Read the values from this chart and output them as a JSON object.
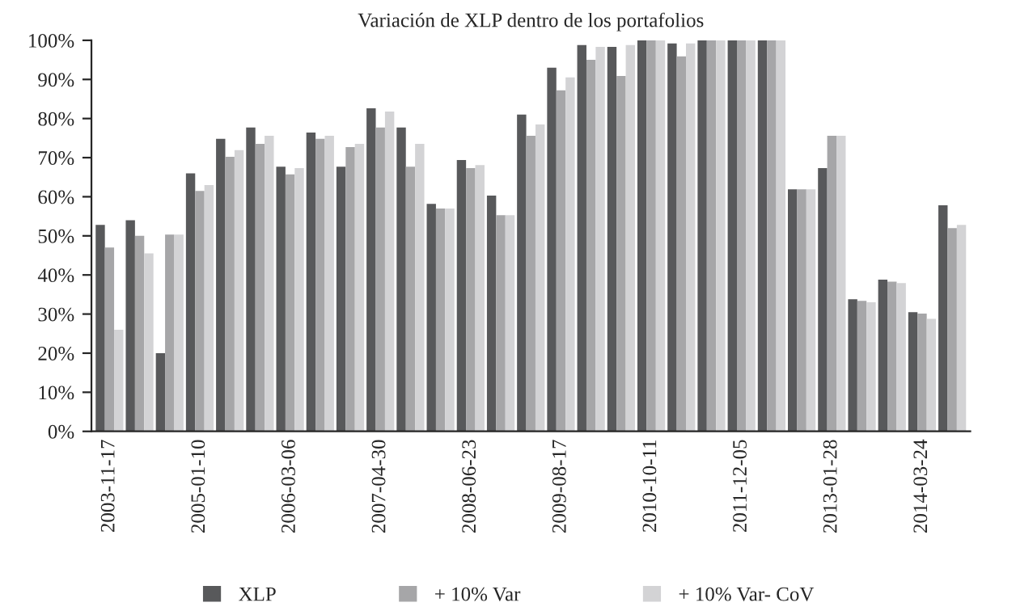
{
  "chart_data": {
    "type": "bar",
    "title": "Variación de XLP dentro de los portafolios",
    "categories": [
      "2003-11-17",
      null,
      null,
      "2005-01-10",
      null,
      null,
      "2006-03-06",
      null,
      null,
      "2007-04-30",
      null,
      null,
      "2008-06-23",
      null,
      null,
      "2009-08-17",
      null,
      null,
      "2010-10-11",
      null,
      null,
      "2011-12-05",
      null,
      null,
      "2013-01-28",
      null,
      null,
      "2014-03-24",
      null
    ],
    "series": [
      {
        "name": "XLP",
        "color": "#58595b",
        "values": [
          52.8,
          54,
          20,
          66,
          74.8,
          77.7,
          67.7,
          76.4,
          67.7,
          82.6,
          77.7,
          58.2,
          69.4,
          60.3,
          81,
          93,
          98.8,
          98.3,
          100,
          99.2,
          100,
          100,
          100,
          61.9,
          67.3,
          33.8,
          38.8,
          30.5,
          57.8
        ]
      },
      {
        "name": "+ 10% Var",
        "color": "#a6a6a8",
        "values": [
          47,
          50,
          50.3,
          61.5,
          70.2,
          73.5,
          65.7,
          74.8,
          72.7,
          77.7,
          67.7,
          57,
          67.3,
          55.3,
          75.6,
          87.2,
          95,
          90.9,
          100,
          95.9,
          100,
          100,
          100,
          61.9,
          75.6,
          33.4,
          38.3,
          30.1,
          52
        ]
      },
      {
        "name": "+ 10% Var- CoV",
        "color": "#d3d3d5",
        "values": [
          26,
          45.5,
          50.3,
          63,
          71.9,
          75.6,
          67.3,
          75.6,
          73.5,
          81.8,
          73.5,
          57,
          68.1,
          55.3,
          78.5,
          90.5,
          98.3,
          98.8,
          100,
          99.2,
          100,
          100,
          100,
          61.9,
          75.6,
          33,
          37.9,
          28.8,
          52.8
        ]
      }
    ],
    "ylim": [
      0,
      100
    ],
    "yticks": [
      {
        "value": 0,
        "label": "0%"
      },
      {
        "value": 10,
        "label": "10%"
      },
      {
        "value": 20,
        "label": "20%"
      },
      {
        "value": 30,
        "label": "30%"
      },
      {
        "value": 40,
        "label": "40%"
      },
      {
        "value": 50,
        "label": "50%"
      },
      {
        "value": 60,
        "label": "60%"
      },
      {
        "value": 70,
        "label": "70%"
      },
      {
        "value": 80,
        "label": "80%"
      },
      {
        "value": 90,
        "label": "90%"
      },
      {
        "value": 100,
        "label": "100%"
      }
    ],
    "grid": false,
    "legend": "bottom"
  }
}
